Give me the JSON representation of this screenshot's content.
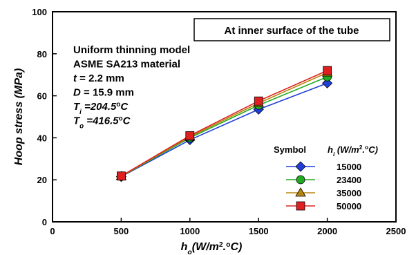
{
  "chart_data": {
    "type": "line",
    "inset_title": "At inner surface of the tube",
    "annotations": [
      {
        "parts": [
          {
            "t": "Uniform thinning model",
            "s": "n"
          }
        ]
      },
      {
        "parts": [
          {
            "t": "ASME SA213 material",
            "s": "n"
          }
        ]
      },
      {
        "parts": [
          {
            "t": "t",
            "s": "i"
          },
          {
            "t": " = 2.2 mm",
            "s": "n"
          }
        ]
      },
      {
        "parts": [
          {
            "t": "D",
            "s": "i"
          },
          {
            "t": " = 15.9 mm",
            "s": "n"
          }
        ]
      },
      {
        "parts": [
          {
            "t": "T",
            "s": "i"
          },
          {
            "t": "i",
            "s": "isub"
          },
          {
            "t": " =204.5",
            "s": "i"
          },
          {
            "t": "o",
            "s": "sup"
          },
          {
            "t": "C",
            "s": "i"
          }
        ]
      },
      {
        "parts": [
          {
            "t": "T",
            "s": "i"
          },
          {
            "t": "o",
            "s": "isub"
          },
          {
            "t": " =416.5",
            "s": "i"
          },
          {
            "t": "o",
            "s": "sup"
          },
          {
            "t": "C",
            "s": "i"
          }
        ]
      }
    ],
    "xlabel_parts": [
      {
        "t": "h",
        "s": "i"
      },
      {
        "t": "o",
        "s": "isub"
      },
      {
        "t": "(W/m",
        "s": "i"
      },
      {
        "t": "2",
        "s": "sup"
      },
      {
        "t": ".",
        "s": "i"
      },
      {
        "t": "o",
        "s": "sup"
      },
      {
        "t": "C)",
        "s": "i"
      }
    ],
    "ylabel": "Hoop stress (MPa)",
    "xlim": [
      0,
      2500
    ],
    "ylim": [
      0,
      100
    ],
    "xticks": [
      0,
      500,
      1000,
      1500,
      2000,
      2500
    ],
    "yticks": [
      0,
      20,
      40,
      60,
      80,
      100
    ],
    "grid": false,
    "legend_position": "lower-right",
    "legend_symbol_header": "Symbol",
    "legend_value_header_parts": [
      {
        "t": "h",
        "s": "i"
      },
      {
        "t": "i",
        "s": "isub"
      },
      {
        "t": " (W/m",
        "s": "i"
      },
      {
        "t": "2",
        "s": "sup"
      },
      {
        "t": ".",
        "s": "i"
      },
      {
        "t": "o",
        "s": "sup"
      },
      {
        "t": "C)",
        "s": "i"
      }
    ],
    "x": [
      500,
      1000,
      1500,
      2000
    ],
    "series": [
      {
        "name": "15000",
        "values": [
          21.5,
          39,
          53.5,
          66
        ],
        "color": "#1f3fd8",
        "marker": "diamond"
      },
      {
        "name": "23400",
        "values": [
          21.6,
          40,
          55.5,
          69
        ],
        "color": "#22aa22",
        "marker": "circle"
      },
      {
        "name": "35000",
        "values": [
          21.7,
          40.5,
          56.5,
          71
        ],
        "color": "#b8860b",
        "marker": "triangle"
      },
      {
        "name": "50000",
        "values": [
          21.8,
          41,
          57.5,
          72
        ],
        "color": "#e02020",
        "marker": "square"
      }
    ]
  }
}
